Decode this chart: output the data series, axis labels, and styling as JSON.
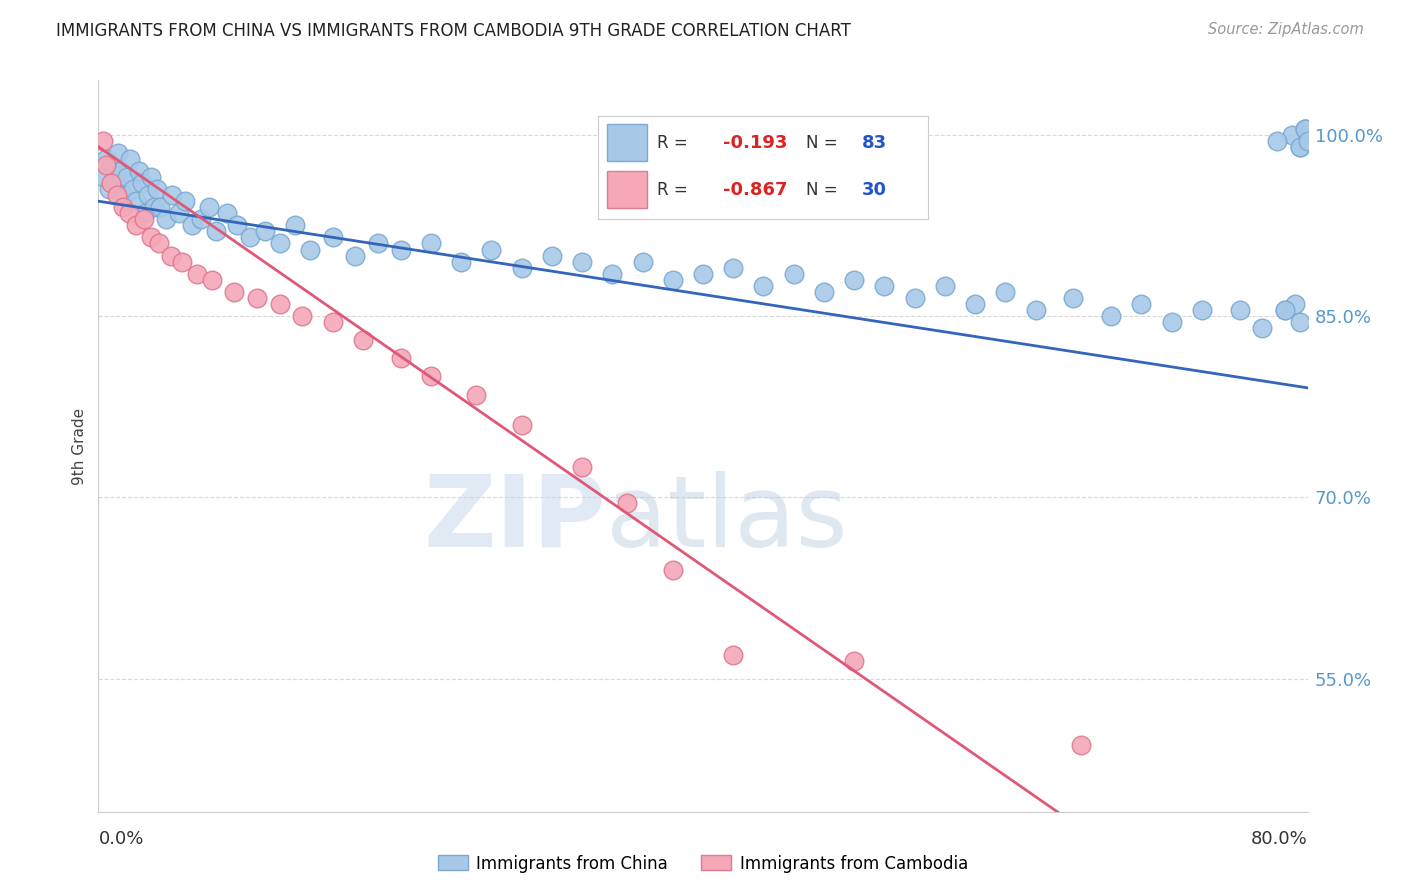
{
  "title": "IMMIGRANTS FROM CHINA VS IMMIGRANTS FROM CAMBODIA 9TH GRADE CORRELATION CHART",
  "source": "Source: ZipAtlas.com",
  "ylabel": "9th Grade",
  "ytick_vals": [
    55.0,
    70.0,
    85.0,
    100.0
  ],
  "ytick_labels": [
    "55.0%",
    "70.0%",
    "85.0%",
    "100.0%"
  ],
  "watermark_zip": "ZIP",
  "watermark_atlas": "atlas",
  "legend_r_china": "-0.193",
  "legend_n_china": "83",
  "legend_r_cambodia": "-0.867",
  "legend_n_cambodia": "30",
  "china_color": "#a8c8e8",
  "cambodia_color": "#f4a8b8",
  "trendline_china_color": "#3366bb",
  "trendline_cambodia_color": "#e05878",
  "china_edge_color": "#7aaad0",
  "cambodia_edge_color": "#e07890",
  "china_points_x": [
    0.3,
    0.5,
    0.7,
    0.9,
    1.1,
    1.3,
    1.5,
    1.7,
    1.9,
    2.1,
    2.3,
    2.5,
    2.7,
    2.9,
    3.1,
    3.3,
    3.5,
    3.7,
    3.9,
    4.1,
    4.5,
    4.9,
    5.3,
    5.7,
    6.2,
    6.8,
    7.3,
    7.8,
    8.5,
    9.2,
    10.0,
    11.0,
    12.0,
    13.0,
    14.0,
    15.5,
    17.0,
    18.5,
    20.0,
    22.0,
    24.0,
    26.0,
    28.0,
    30.0,
    32.0,
    34.0,
    36.0,
    38.0,
    40.0,
    42.0,
    44.0,
    46.0,
    48.0,
    50.0,
    52.0,
    54.0,
    56.0,
    58.0,
    60.0,
    62.0,
    64.5,
    67.0,
    69.0,
    71.0,
    73.0,
    75.5,
    77.0,
    78.5,
    79.5,
    80.0,
    79.8,
    80.0,
    79.5,
    79.0,
    78.0,
    79.2,
    78.5,
    79.8,
    80.0,
    80.0,
    79.5,
    79.8,
    80.0
  ],
  "china_points_y": [
    96.5,
    98.0,
    95.5,
    97.5,
    96.0,
    98.5,
    97.0,
    95.0,
    96.5,
    98.0,
    95.5,
    94.5,
    97.0,
    96.0,
    93.5,
    95.0,
    96.5,
    94.0,
    95.5,
    94.0,
    93.0,
    95.0,
    93.5,
    94.5,
    92.5,
    93.0,
    94.0,
    92.0,
    93.5,
    92.5,
    91.5,
    92.0,
    91.0,
    92.5,
    90.5,
    91.5,
    90.0,
    91.0,
    90.5,
    91.0,
    89.5,
    90.5,
    89.0,
    90.0,
    89.5,
    88.5,
    89.5,
    88.0,
    88.5,
    89.0,
    87.5,
    88.5,
    87.0,
    88.0,
    87.5,
    86.5,
    87.5,
    86.0,
    87.0,
    85.5,
    86.5,
    85.0,
    86.0,
    84.5,
    85.5,
    85.5,
    84.0,
    85.5,
    84.5,
    100.0,
    100.5,
    99.5,
    99.0,
    100.0,
    99.5,
    86.0,
    85.5,
    100.5,
    99.5,
    100.0,
    99.0,
    100.5,
    99.5
  ],
  "cambodia_points_x": [
    0.3,
    0.5,
    0.8,
    1.2,
    1.6,
    2.0,
    2.5,
    3.0,
    3.5,
    4.0,
    4.8,
    5.5,
    6.5,
    7.5,
    9.0,
    10.5,
    12.0,
    13.5,
    15.5,
    17.5,
    20.0,
    22.0,
    25.0,
    28.0,
    32.0,
    35.0,
    38.0,
    42.0,
    50.0,
    65.0
  ],
  "cambodia_points_y": [
    99.5,
    97.5,
    96.0,
    95.0,
    94.0,
    93.5,
    92.5,
    93.0,
    91.5,
    91.0,
    90.0,
    89.5,
    88.5,
    88.0,
    87.0,
    86.5,
    86.0,
    85.0,
    84.5,
    83.0,
    81.5,
    80.0,
    78.5,
    76.0,
    72.5,
    69.5,
    64.0,
    57.0,
    56.5,
    49.5
  ],
  "xmin": 0.0,
  "xmax": 80.0,
  "ymin": 44.0,
  "ymax": 104.5,
  "trendline_china_slope": -0.193,
  "trendline_china_intercept": 94.5,
  "trendline_cambodia_slope": -0.867,
  "trendline_cambodia_intercept": 99.0
}
